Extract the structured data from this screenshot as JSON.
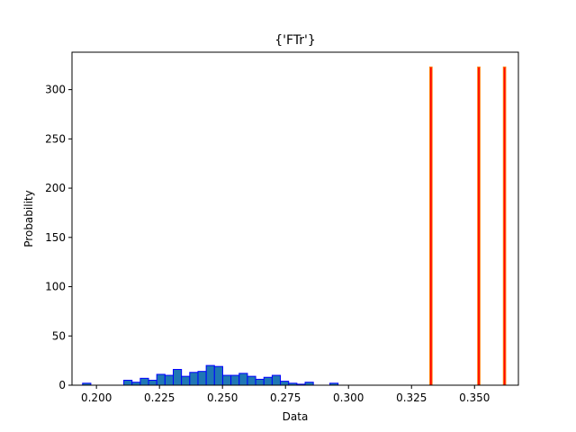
{
  "chart_data": {
    "type": "bar",
    "title": "{'FTr'}",
    "xlabel": "Data",
    "ylabel": "Probability",
    "xlim": [
      0.1903,
      0.3674
    ],
    "ylim": [
      0,
      338
    ],
    "grid": false,
    "x_ticks": [
      "0.200",
      "0.225",
      "0.250",
      "0.275",
      "0.300",
      "0.325",
      "0.350"
    ],
    "x_tick_values": [
      0.2,
      0.225,
      0.25,
      0.275,
      0.3,
      0.325,
      0.35
    ],
    "y_ticks": [
      "0",
      "50",
      "100",
      "150",
      "200",
      "250",
      "300"
    ],
    "y_tick_values": [
      0,
      50,
      100,
      150,
      200,
      250,
      300
    ],
    "series": [
      {
        "style": "histogram",
        "bin_start": 0.1945,
        "bin_width": 0.00327,
        "values": [
          2,
          0,
          0,
          0,
          0,
          5,
          3,
          7,
          5,
          11,
          10,
          16,
          9,
          13,
          14,
          20,
          19,
          10,
          10,
          12,
          9,
          6,
          8,
          10,
          4,
          2,
          1,
          3,
          0,
          0,
          2,
          0
        ],
        "color": "#1f77b4",
        "edge_color": "#0000ff"
      },
      {
        "style": "bars",
        "x": [
          0.3327,
          0.3517,
          0.3619
        ],
        "values": [
          323,
          323,
          323
        ],
        "bar_width": 0.00095,
        "color": "#ff0000",
        "edge_color": "#ff7f0e"
      }
    ]
  }
}
